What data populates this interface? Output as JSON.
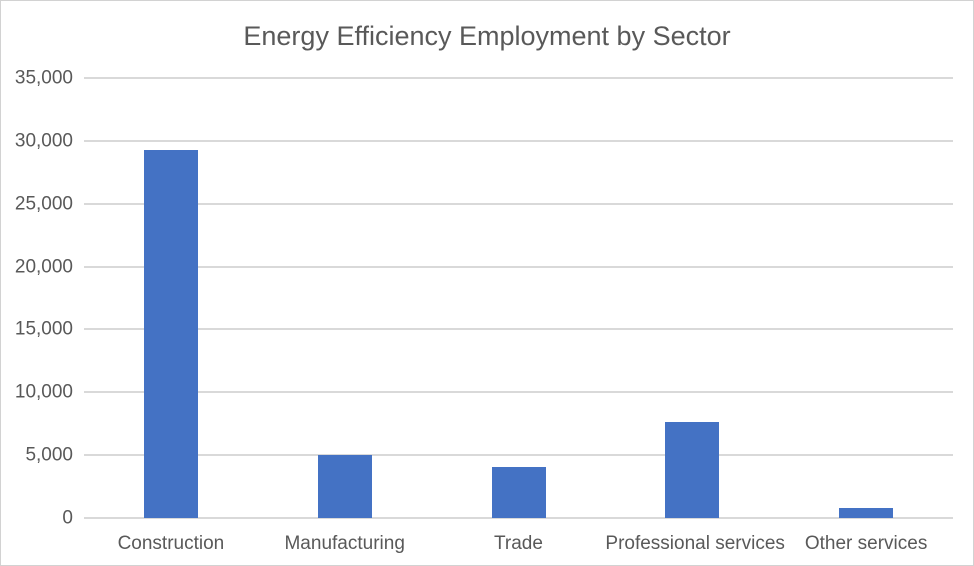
{
  "chart_data": {
    "type": "bar",
    "title": "Energy Efficiency Employment by Sector",
    "categories": [
      "Construction",
      "Manufacturing",
      "Trade",
      "Professional services",
      "Other services"
    ],
    "values": [
      29300,
      5050,
      4050,
      7600,
      830
    ],
    "xlabel": "",
    "ylabel": "",
    "ylim": [
      0,
      35000
    ],
    "ytick_interval": 5000,
    "ytick_labels": [
      "0",
      "5,000",
      "10,000",
      "15,000",
      "20,000",
      "25,000",
      "30,000",
      "35,000"
    ],
    "grid": true,
    "legend": false,
    "bar_color": "#4472c4",
    "gridline_color": "#d9d9d9",
    "text_color": "#595959",
    "background_color": "#ffffff"
  }
}
